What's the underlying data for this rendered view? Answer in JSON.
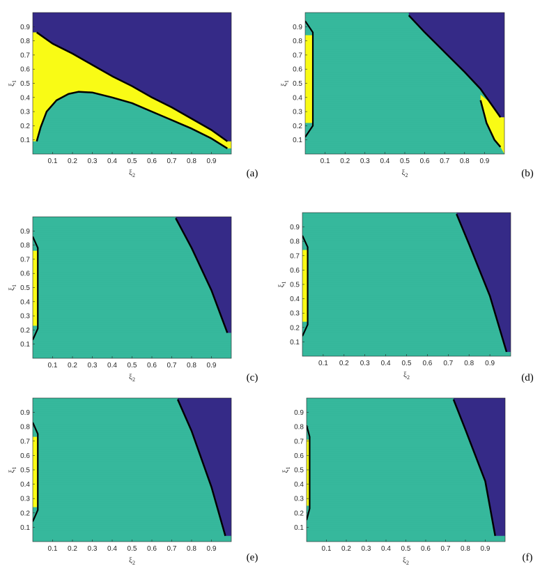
{
  "colors": {
    "region_top": "#352A87",
    "region_bottom": "#35B79B",
    "region_narrow": "#F9FB15",
    "boundary": "#000000"
  },
  "chart_data": [
    {
      "type": "heatmap",
      "panel_label": "(a)",
      "xlabel": "ξ",
      "xlabel_sub": "2",
      "ylabel": "ξ",
      "ylabel_sub": "1",
      "xlim": [
        0,
        1
      ],
      "ylim": [
        0,
        1
      ],
      "xticks": [
        "0.1",
        "0.2",
        "0.3",
        "0.4",
        "0.5",
        "0.6",
        "0.7",
        "0.8",
        "0.9"
      ],
      "yticks": [
        "0.1",
        "0.2",
        "0.3",
        "0.4",
        "0.5",
        "0.6",
        "0.7",
        "0.8",
        "0.9"
      ],
      "upper_boundary": [
        [
          0.02,
          0.86
        ],
        [
          0.1,
          0.78
        ],
        [
          0.2,
          0.71
        ],
        [
          0.3,
          0.63
        ],
        [
          0.4,
          0.55
        ],
        [
          0.5,
          0.48
        ],
        [
          0.6,
          0.4
        ],
        [
          0.7,
          0.33
        ],
        [
          0.8,
          0.25
        ],
        [
          0.9,
          0.17
        ],
        [
          0.98,
          0.09
        ]
      ],
      "lower_boundary": [
        [
          0.02,
          0.09
        ],
        [
          0.04,
          0.19
        ],
        [
          0.07,
          0.3
        ],
        [
          0.12,
          0.38
        ],
        [
          0.18,
          0.425
        ],
        [
          0.23,
          0.44
        ],
        [
          0.3,
          0.435
        ],
        [
          0.4,
          0.4
        ],
        [
          0.5,
          0.36
        ],
        [
          0.6,
          0.3
        ],
        [
          0.7,
          0.24
        ],
        [
          0.8,
          0.18
        ],
        [
          0.9,
          0.11
        ],
        [
          0.98,
          0.04
        ]
      ]
    },
    {
      "type": "heatmap",
      "panel_label": "(b)",
      "xlabel": "ξ",
      "xlabel_sub": "2",
      "ylabel": "ξ",
      "ylabel_sub": "1",
      "xlim": [
        0,
        1
      ],
      "ylim": [
        0,
        1
      ],
      "xticks": [
        "0.1",
        "0.2",
        "0.3",
        "0.4",
        "0.5",
        "0.6",
        "0.7",
        "0.8",
        "0.9"
      ],
      "yticks": [
        "0.1",
        "0.2",
        "0.3",
        "0.4",
        "0.5",
        "0.6",
        "0.7",
        "0.8",
        "0.9"
      ],
      "upper_boundary": [
        [
          0.52,
          0.98
        ],
        [
          0.6,
          0.86
        ],
        [
          0.7,
          0.72
        ],
        [
          0.8,
          0.58
        ],
        [
          0.88,
          0.46
        ],
        [
          0.98,
          0.26
        ]
      ],
      "lower_boundary": [
        [
          0.88,
          0.38
        ],
        [
          0.91,
          0.22
        ],
        [
          0.95,
          0.1
        ],
        [
          0.98,
          0.05
        ]
      ],
      "left_strip": {
        "x_max": 0.035,
        "y_min": 0.12,
        "y_max": 0.94
      }
    },
    {
      "type": "heatmap",
      "panel_label": "(c)",
      "xlabel": "ξ",
      "xlabel_sub": "2",
      "ylabel": "ξ",
      "ylabel_sub": "1",
      "xlim": [
        0,
        1
      ],
      "ylim": [
        0,
        1
      ],
      "xticks": [
        "0.1",
        "0.2",
        "0.3",
        "0.4",
        "0.5",
        "0.6",
        "0.7",
        "0.8",
        "0.9"
      ],
      "yticks": [
        "0.1",
        "0.2",
        "0.3",
        "0.4",
        "0.5",
        "0.6",
        "0.7",
        "0.8",
        "0.9"
      ],
      "upper_boundary": [
        [
          0.72,
          0.99
        ],
        [
          0.8,
          0.78
        ],
        [
          0.9,
          0.48
        ],
        [
          0.98,
          0.18
        ]
      ],
      "left_strip": {
        "x_max": 0.022,
        "y_min": 0.13,
        "y_max": 0.86
      }
    },
    {
      "type": "heatmap",
      "panel_label": "(d)",
      "xlabel": "ξ",
      "xlabel_sub": "2",
      "ylabel": "ξ",
      "ylabel_sub": "1",
      "xlim": [
        0,
        1
      ],
      "ylim": [
        0,
        1
      ],
      "xticks": [
        "0.1",
        "0.2",
        "0.3",
        "0.4",
        "0.5",
        "0.6",
        "0.7",
        "0.8",
        "0.9"
      ],
      "yticks": [
        "0.1",
        "0.2",
        "0.3",
        "0.4",
        "0.5",
        "0.6",
        "0.7",
        "0.8",
        "0.9"
      ],
      "upper_boundary": [
        [
          0.74,
          0.99
        ],
        [
          0.8,
          0.78
        ],
        [
          0.9,
          0.42
        ],
        [
          0.98,
          0.03
        ]
      ],
      "left_strip": {
        "x_max": 0.022,
        "y_min": 0.14,
        "y_max": 0.84
      }
    },
    {
      "type": "heatmap",
      "panel_label": "(e)",
      "xlabel": "ξ",
      "xlabel_sub": "2",
      "ylabel": "ξ",
      "ylabel_sub": "1",
      "xlim": [
        0,
        1
      ],
      "ylim": [
        0,
        1
      ],
      "xticks": [
        "0.1",
        "0.2",
        "0.3",
        "0.4",
        "0.5",
        "0.6",
        "0.7",
        "0.8",
        "0.9"
      ],
      "yticks": [
        "0.1",
        "0.2",
        "0.3",
        "0.4",
        "0.5",
        "0.6",
        "0.7",
        "0.8",
        "0.9"
      ],
      "upper_boundary": [
        [
          0.73,
          0.99
        ],
        [
          0.8,
          0.77
        ],
        [
          0.9,
          0.38
        ],
        [
          0.97,
          0.04
        ]
      ],
      "left_strip": {
        "x_max": 0.022,
        "y_min": 0.14,
        "y_max": 0.83
      }
    },
    {
      "type": "heatmap",
      "panel_label": "(f)",
      "xlabel": "ξ",
      "xlabel_sub": "2",
      "ylabel": "ξ",
      "ylabel_sub": "1",
      "xlim": [
        0,
        1
      ],
      "ylim": [
        0,
        1
      ],
      "xticks": [
        "0.1",
        "0.2",
        "0.3",
        "0.4",
        "0.5",
        "0.6",
        "0.7",
        "0.8",
        "0.9"
      ],
      "yticks": [
        "0.1",
        "0.2",
        "0.3",
        "0.4",
        "0.5",
        "0.6",
        "0.7",
        "0.8",
        "0.9"
      ],
      "upper_boundary": [
        [
          0.74,
          0.99
        ],
        [
          0.8,
          0.78
        ],
        [
          0.9,
          0.42
        ],
        [
          0.95,
          0.04
        ]
      ],
      "left_strip": {
        "x_max": 0.012,
        "y_min": 0.15,
        "y_max": 0.81
      }
    }
  ]
}
